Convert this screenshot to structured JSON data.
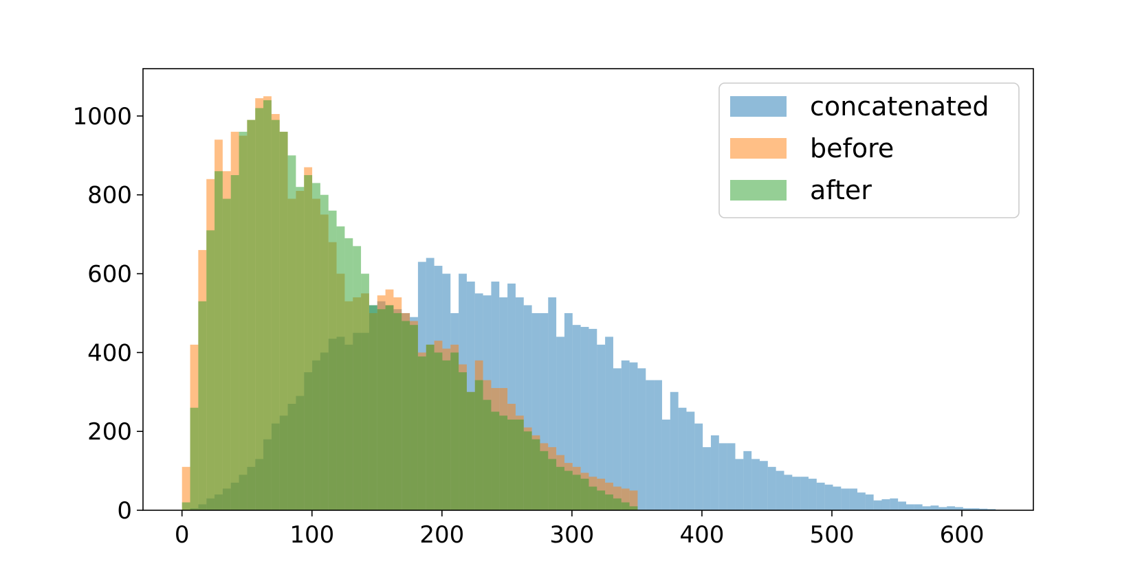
{
  "chart_data": {
    "type": "bar",
    "title": "",
    "xlabel": "",
    "ylabel": "",
    "xlim": [
      -30,
      655
    ],
    "ylim": [
      0,
      1120
    ],
    "xticks": [
      0,
      100,
      200,
      300,
      400,
      500,
      600
    ],
    "yticks": [
      0,
      200,
      400,
      600,
      800,
      1000
    ],
    "grid": false,
    "legend_position": "top-right",
    "bin_start": 0,
    "bin_width": 6.26,
    "series": [
      {
        "name": "concatenated",
        "color": "#1f77b4",
        "alpha": 0.5,
        "values": [
          0,
          5,
          15,
          30,
          40,
          55,
          70,
          90,
          110,
          130,
          180,
          220,
          240,
          270,
          290,
          350,
          380,
          400,
          435,
          440,
          420,
          450,
          450,
          520,
          530,
          520,
          510,
          500,
          490,
          630,
          640,
          620,
          600,
          500,
          600,
          580,
          550,
          545,
          580,
          540,
          575,
          540,
          520,
          500,
          500,
          540,
          440,
          500,
          470,
          465,
          460,
          420,
          440,
          360,
          380,
          375,
          360,
          330,
          330,
          230,
          300,
          260,
          250,
          220,
          160,
          190,
          170,
          170,
          130,
          150,
          130,
          125,
          110,
          100,
          90,
          85,
          85,
          80,
          70,
          65,
          60,
          55,
          55,
          45,
          40,
          25,
          28,
          30,
          22,
          15,
          15,
          10,
          12,
          8,
          10,
          8,
          5,
          5,
          4,
          3
        ]
      },
      {
        "name": "before",
        "color": "#ff7f0e",
        "alpha": 0.5,
        "values": [
          110,
          420,
          660,
          840,
          940,
          860,
          960,
          950,
          990,
          1045,
          1050,
          1005,
          960,
          790,
          810,
          870,
          790,
          750,
          680,
          600,
          530,
          540,
          550,
          500,
          545,
          560,
          540,
          500,
          480,
          400,
          420,
          430,
          410,
          420,
          370,
          300,
          380,
          330,
          310,
          310,
          270,
          240,
          210,
          190,
          170,
          160,
          140,
          120,
          110,
          95,
          85,
          80,
          70,
          60,
          55,
          50
        ]
      },
      {
        "name": "after",
        "color": "#2ca02c",
        "alpha": 0.5,
        "values": [
          20,
          260,
          530,
          710,
          860,
          790,
          850,
          960,
          990,
          1020,
          1040,
          990,
          960,
          900,
          820,
          850,
          830,
          800,
          760,
          720,
          690,
          670,
          600,
          520,
          510,
          520,
          500,
          480,
          470,
          390,
          420,
          400,
          380,
          400,
          350,
          300,
          330,
          280,
          250,
          240,
          230,
          230,
          200,
          180,
          150,
          130,
          110,
          100,
          90,
          80,
          60,
          50,
          40,
          30,
          20,
          10
        ]
      }
    ]
  }
}
